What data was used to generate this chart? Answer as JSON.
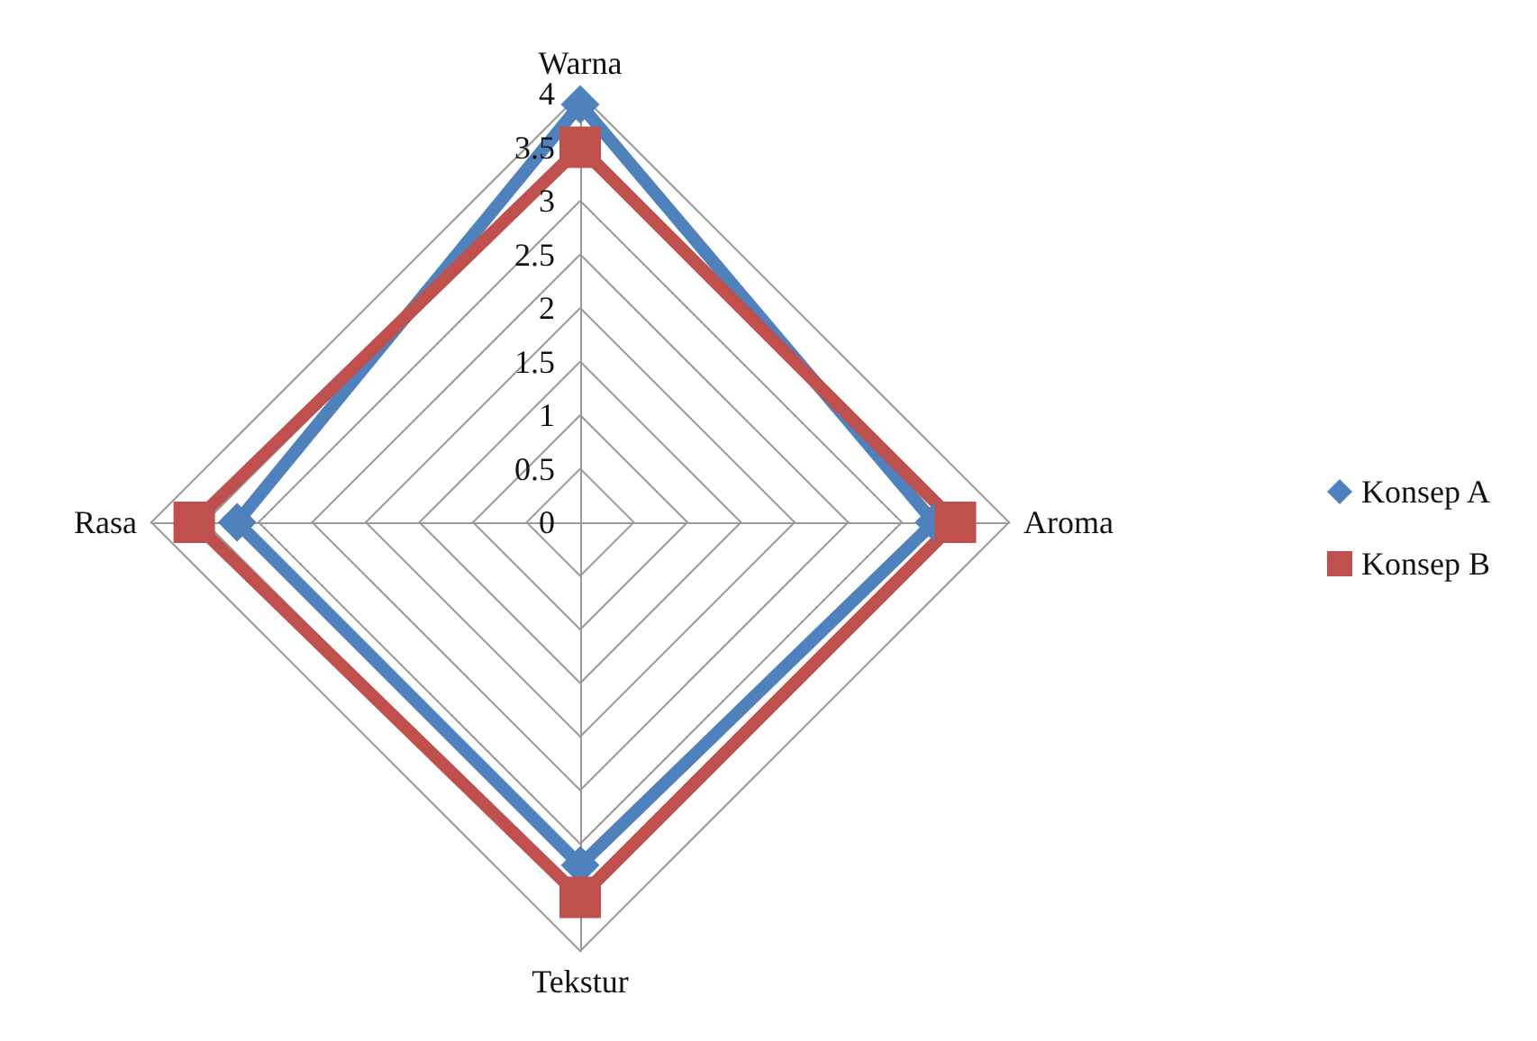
{
  "chart_data": {
    "type": "radar",
    "categories": [
      "Warna",
      "Aroma",
      "Tekstur",
      "Rasa"
    ],
    "series": [
      {
        "name": "Konsep A",
        "color": "#4f81bd",
        "marker": "diamond",
        "values": [
          3.9,
          3.3,
          3.2,
          3.2
        ]
      },
      {
        "name": "Konsep B",
        "color": "#c0504d",
        "marker": "square",
        "values": [
          3.5,
          3.5,
          3.5,
          3.6
        ]
      }
    ],
    "ylim": [
      0,
      4
    ],
    "yticks": [
      0,
      0.5,
      1,
      1.5,
      2,
      2.5,
      3,
      3.5,
      4
    ],
    "grid": true,
    "legend": "right"
  }
}
